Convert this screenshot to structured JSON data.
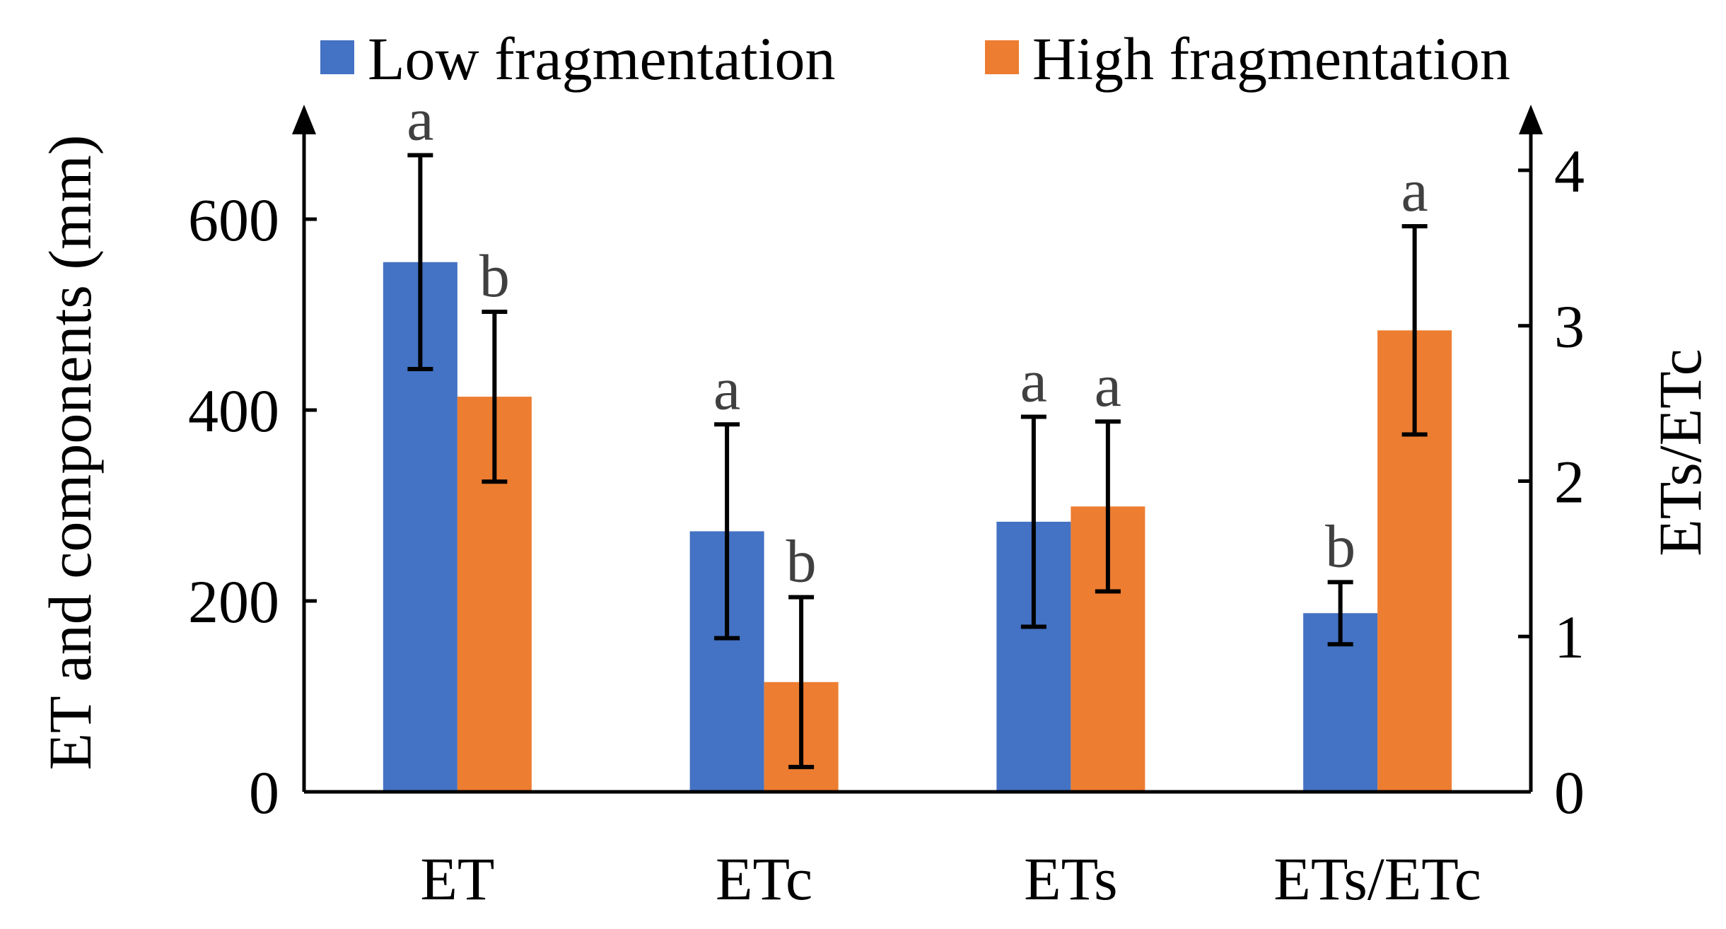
{
  "chart_data": {
    "type": "bar",
    "categories": [
      "ET",
      "ETc",
      "ETs",
      "ETs/ETc"
    ],
    "series": [
      {
        "name": "Low fragmentation",
        "color": "#4472C4",
        "values": [
          555,
          273,
          283,
          1.15
        ],
        "errors": [
          112,
          112,
          110,
          0.2
        ],
        "significance": [
          "a",
          "a",
          "a",
          "b"
        ]
      },
      {
        "name": "High fragmentation",
        "color": "#ED7D31",
        "values": [
          414,
          115,
          299,
          2.97
        ],
        "errors": [
          89,
          89,
          89,
          0.67
        ],
        "significance": [
          "b",
          "b",
          "a",
          "a"
        ]
      }
    ],
    "left_axis": {
      "label": "ET and components (mm)",
      "min": 0,
      "max": 700,
      "ticks": [
        0,
        200,
        400,
        600
      ],
      "tick_labels": [
        "0",
        "200",
        "400",
        "600"
      ],
      "categories": [
        "ET",
        "ETc",
        "ETs"
      ]
    },
    "right_axis": {
      "label": "ETs/ETc",
      "min": 0,
      "max": 4.3,
      "ticks": [
        0,
        1,
        2,
        3,
        4
      ],
      "tick_labels": [
        "0",
        "1",
        "2",
        "3",
        "4"
      ],
      "categories": [
        "ETs/ETc"
      ]
    },
    "legend_position": "top",
    "grid": false
  }
}
